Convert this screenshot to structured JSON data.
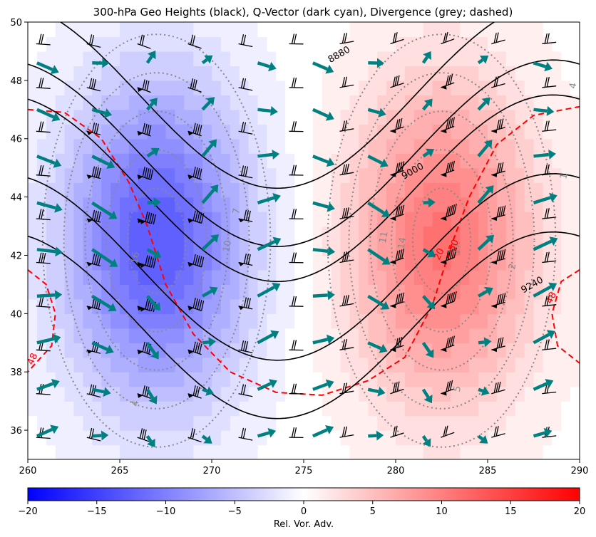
{
  "chart_data": {
    "type": "heatmap",
    "title": "300-hPa Geo Heights (black), Q-Vector (dark cyan), Divergence (grey; dashed)",
    "xlim": [
      260,
      290
    ],
    "ylim": [
      35,
      50
    ],
    "x_ticks": [
      260,
      265,
      270,
      275,
      280,
      285,
      290
    ],
    "y_ticks": [
      36,
      38,
      40,
      42,
      44,
      46,
      48,
      50
    ],
    "colorbar": {
      "label": "Rel. Vor. Adv.",
      "range": [
        -20,
        20
      ],
      "ticks": [
        -20,
        -15,
        -10,
        -5,
        0,
        5,
        10,
        15,
        20
      ],
      "tick_labels": [
        "−20",
        "−15",
        "−10",
        "−5",
        "0",
        "5",
        "10",
        "15",
        "20"
      ],
      "colors": [
        "#0000ff",
        "#ffffff",
        "#ff0000"
      ]
    },
    "field_extrema": [
      {
        "lon": 267,
        "lat": 42.5,
        "value": -13
      },
      {
        "lon": 282.5,
        "lat": 42.5,
        "value": 11
      }
    ],
    "height_contours": {
      "color": "#000000",
      "lines": [
        {
          "lat_center": 47.5
        },
        {
          "lat_center": 45.5
        },
        {
          "lat_center": 44.3
        },
        {
          "lat_center": 41.6
        },
        {
          "lat_center": 39.6
        }
      ],
      "labels": [
        {
          "text": "8880",
          "lon": 277,
          "lat": 48.8
        },
        {
          "text": "9000",
          "lon": 281,
          "lat": 44.8
        },
        {
          "text": "9240",
          "lon": 287.5,
          "lat": 40.9
        }
      ]
    },
    "divergence_contours": {
      "color": "#888888",
      "style": "dotted",
      "labels": [
        {
          "text": "16",
          "lon": 266,
          "lat": 41.9
        },
        {
          "text": "10",
          "lon": 271,
          "lat": 42.3
        },
        {
          "text": "7",
          "lon": 271.5,
          "lat": 43.5
        },
        {
          "text": "4",
          "lon": 266,
          "lat": 36.9
        },
        {
          "text": "11",
          "lon": 279.5,
          "lat": 42.6
        },
        {
          "text": "14",
          "lon": 280.5,
          "lat": 42.4
        },
        {
          "text": "17",
          "lon": 283.5,
          "lat": 42.2
        },
        {
          "text": "2",
          "lon": 286.5,
          "lat": 41.6
        },
        {
          "text": "5",
          "lon": 283.5,
          "lat": 37.4
        },
        {
          "text": "1",
          "lon": 289.3,
          "lat": 44.7
        },
        {
          "text": "4",
          "lon": 289.8,
          "lat": 47.8
        }
      ]
    },
    "red_dashed_contours": {
      "color": "#ff0000",
      "labels": [
        {
          "text": "48",
          "lon": 260.4,
          "lat": 38.4
        },
        {
          "text": "48",
          "lon": 288.6,
          "lat": 40.5
        },
        {
          "text": "20",
          "lon": 282.5,
          "lat": 42
        },
        {
          "text": "50",
          "lon": 283.3,
          "lat": 42.3
        }
      ]
    },
    "qvector_color": "#008080",
    "barb_color": "#000000"
  }
}
